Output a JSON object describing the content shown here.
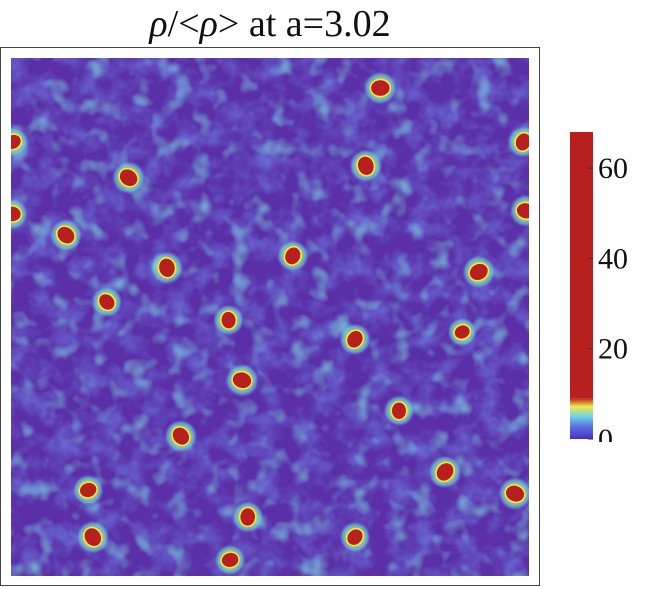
{
  "chart_data": {
    "type": "heatmap",
    "title": "ρ/<ρ> at a=3.02",
    "colorbar": {
      "min": 0,
      "max": 68,
      "ticks": [
        0,
        20,
        40,
        60
      ],
      "colors": [
        "#4a2fc6",
        "#5a6fe0",
        "#6fd0e6",
        "#f2e94a",
        "#b8201f"
      ]
    },
    "colormap_breaks": [
      0,
      2,
      4,
      7,
      9,
      68
    ],
    "background_color": "#5b2fa7",
    "dense_regions": [
      {
        "x": 0.713,
        "y": 0.058,
        "value": 68
      },
      {
        "x": 0.227,
        "y": 0.231,
        "value": 68
      },
      {
        "x": 0.685,
        "y": 0.208,
        "value": 68
      },
      {
        "x": 0.989,
        "y": 0.162,
        "value": 60
      },
      {
        "x": 0.004,
        "y": 0.162,
        "value": 50
      },
      {
        "x": 0.002,
        "y": 0.301,
        "value": 60
      },
      {
        "x": 0.106,
        "y": 0.342,
        "value": 65
      },
      {
        "x": 0.301,
        "y": 0.405,
        "value": 68
      },
      {
        "x": 0.544,
        "y": 0.382,
        "value": 60
      },
      {
        "x": 0.903,
        "y": 0.413,
        "value": 68
      },
      {
        "x": 0.994,
        "y": 0.295,
        "value": 65
      },
      {
        "x": 0.185,
        "y": 0.471,
        "value": 55
      },
      {
        "x": 0.42,
        "y": 0.506,
        "value": 55
      },
      {
        "x": 0.664,
        "y": 0.543,
        "value": 60
      },
      {
        "x": 0.871,
        "y": 0.529,
        "value": 45
      },
      {
        "x": 0.446,
        "y": 0.622,
        "value": 68
      },
      {
        "x": 0.328,
        "y": 0.73,
        "value": 65
      },
      {
        "x": 0.749,
        "y": 0.681,
        "value": 55
      },
      {
        "x": 0.838,
        "y": 0.799,
        "value": 68
      },
      {
        "x": 0.149,
        "y": 0.834,
        "value": 55
      },
      {
        "x": 0.973,
        "y": 0.841,
        "value": 68
      },
      {
        "x": 0.158,
        "y": 0.925,
        "value": 68
      },
      {
        "x": 0.457,
        "y": 0.886,
        "value": 60
      },
      {
        "x": 0.664,
        "y": 0.925,
        "value": 55
      },
      {
        "x": 0.423,
        "y": 0.969,
        "value": 55
      }
    ]
  }
}
